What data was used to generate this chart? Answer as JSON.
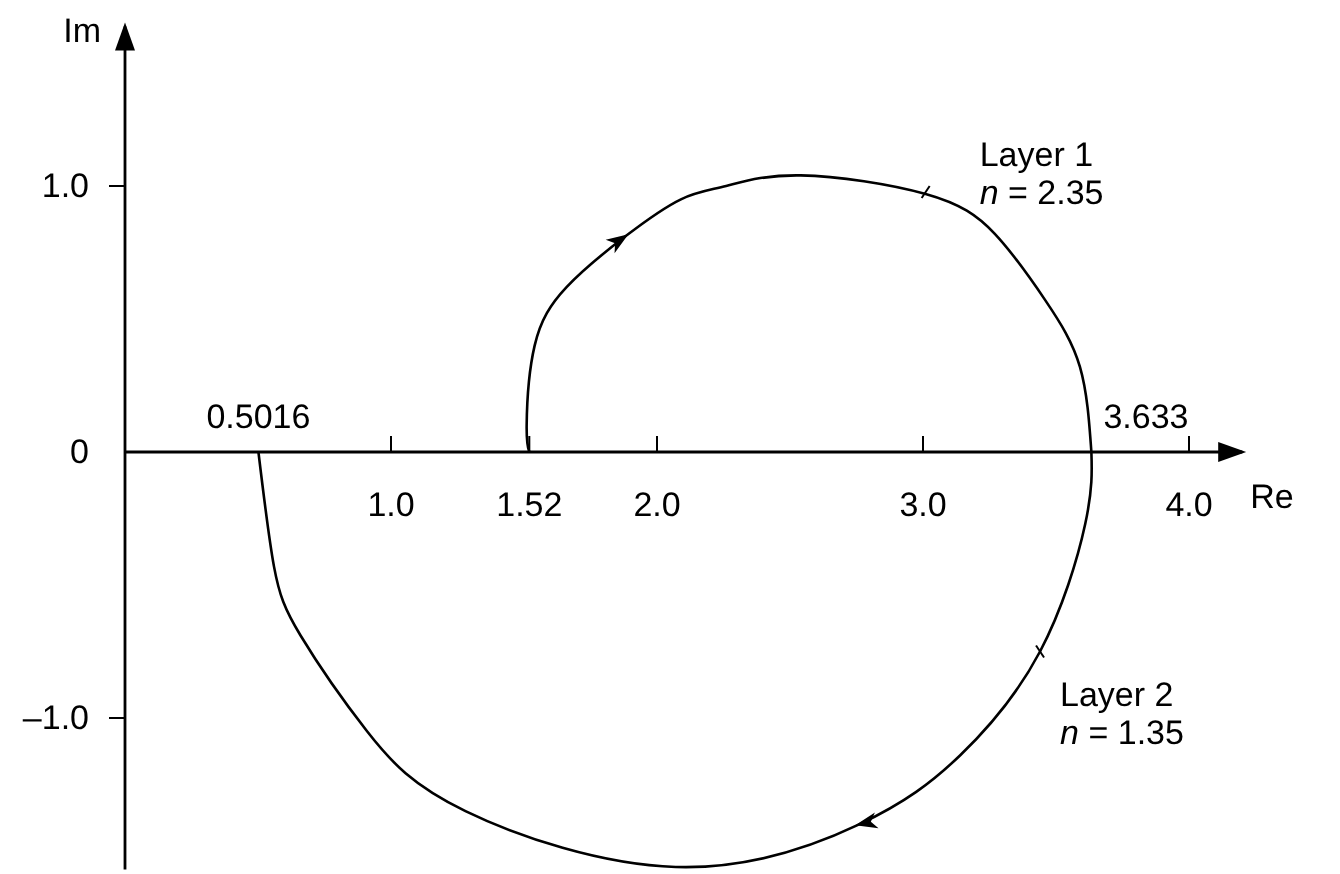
{
  "chart_data": {
    "type": "line",
    "xlabel": "Re",
    "ylabel": "Im",
    "xlim": [
      0,
      4.2
    ],
    "ylim": [
      -1.57,
      1.6
    ],
    "xticks": [
      {
        "value": 1,
        "label": "1.0"
      },
      {
        "value": 1.52,
        "label": "1.52"
      },
      {
        "value": 2,
        "label": "2.0"
      },
      {
        "value": 3,
        "label": "3.0"
      },
      {
        "value": 4,
        "label": "4.0"
      }
    ],
    "yticks": [
      {
        "value": -1,
        "label": "–1.0"
      },
      0,
      {
        "value": 1,
        "label": "1.0"
      }
    ],
    "series": [
      {
        "name": "Layer 1",
        "color": "#000000",
        "x": [
          1.52,
          1.51,
          1.54,
          1.66,
          1.88,
          2.09,
          2.26,
          2.54,
          3.01,
          3.27,
          3.46,
          3.59,
          3.633
        ],
        "values": [
          0,
          0.1,
          0.4,
          0.62,
          0.81,
          0.95,
          1.0,
          1.04,
          0.97,
          0.82,
          0.57,
          0.32,
          0
        ]
      },
      {
        "name": "Layer 2",
        "color": "#000000",
        "x": [
          3.633,
          3.61,
          3.44,
          3.14,
          2.76,
          2.07,
          1.28,
          0.91,
          0.66,
          0.56,
          0.5016
        ],
        "values": [
          0,
          -0.27,
          -0.75,
          -1.14,
          -1.4,
          -1.56,
          -1.35,
          -1.05,
          -0.69,
          -0.43,
          0
        ]
      }
    ],
    "annotations": [
      {
        "text": "n = 2.35",
        "x": 3.01,
        "y": 0.97
      },
      {
        "text": "n = 1.35",
        "x": 3.44,
        "y": -0.75
      },
      {
        "text": "0.5016",
        "x": 0.5016,
        "y": 0
      },
      {
        "text": "3.633",
        "x": 3.633,
        "y": 0
      }
    ],
    "line_style": "solid",
    "marker": "none",
    "grid": false,
    "legend": false
  }
}
